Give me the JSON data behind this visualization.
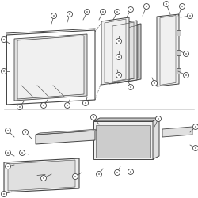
{
  "bg_color": "#ffffff",
  "line_color": "#444444",
  "fill_light": "#f0f0f0",
  "fill_mid": "#e0e0e0",
  "fill_dark": "#cccccc",
  "figsize": [
    2.5,
    2.5
  ],
  "dpi": 100
}
